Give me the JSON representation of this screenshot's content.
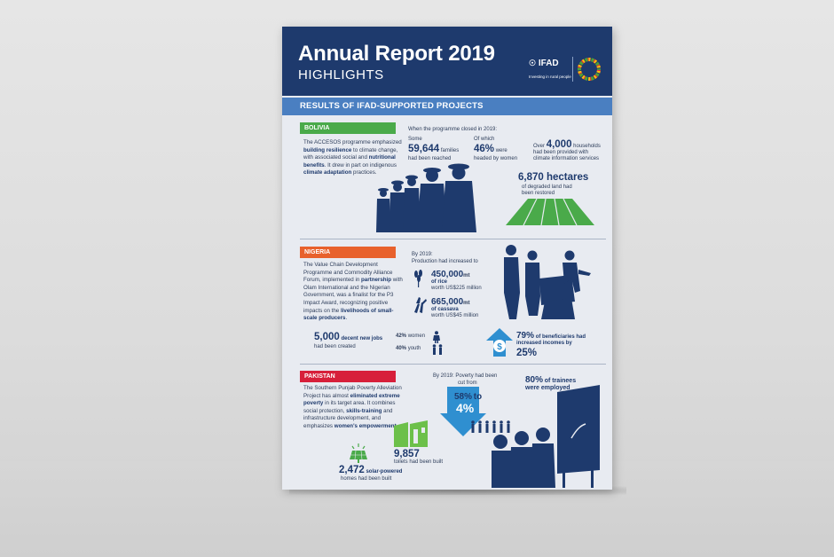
{
  "header": {
    "title": "Annual Report 2019",
    "subtitle": "HIGHLIGHTS",
    "org": "IFAD",
    "org_tagline": "Investing in rural people"
  },
  "results_heading": "RESULTS OF IFAD-SUPPORTED PROJECTS",
  "bolivia": {
    "label": "BOLIVIA",
    "label_color": "#4aaa4a",
    "desc_parts": [
      "The ACCESOS programme emphasized ",
      "building resilience",
      " to climate change, with associated social and ",
      "nutritional benefits",
      ". It drew in part on indigenous ",
      "climate adaptation",
      " practices."
    ],
    "intro": "When the programme closed in 2019:",
    "families_pre": "Some",
    "families_value": "59,644",
    "families_unit": "families",
    "families_post": "had been reached",
    "women_pre": "Of which",
    "women_value": "46%",
    "women_unit": "were",
    "women_post": "headed by women",
    "households_pre": "Over",
    "households_value": "4,000",
    "households_unit": "households",
    "households_post1": "had been provided with",
    "households_post2": "climate information services",
    "hectares_value": "6,870 hectares",
    "hectares_post1": "of degraded land had",
    "hectares_post2": "been restored"
  },
  "nigeria": {
    "label": "NIGERIA",
    "label_color": "#e8612c",
    "desc_parts": [
      "The Value Chain Development Programme and Commodity Alliance Forum, implemented in ",
      "partnership",
      " with Olam International and the Nigerian Government, was a finalist for the P3 Impact Award, recognizing positive impacts on the ",
      "livelihoods of small-scale producers",
      "."
    ],
    "intro1": "By 2019:",
    "intro2": "Production had increased to",
    "rice_value": "450,000",
    "rice_unit": "mt",
    "rice_label": "of rice",
    "rice_worth": "worth US$225 million",
    "cassava_value": "665,000",
    "cassava_unit": "mt",
    "cassava_label": "of cassava",
    "cassava_worth": "worth US$45 million",
    "jobs_value": "5,000",
    "jobs_unit": "decent new jobs",
    "jobs_post": "had been created",
    "women_pct": "42%",
    "women_label": "women",
    "youth_pct": "40%",
    "youth_label": "youth",
    "income_pct": "79%",
    "income_text1": "of beneficiaries had",
    "income_text2": "increased incomes by",
    "income_value": "25%"
  },
  "pakistan": {
    "label": "PAKISTAN",
    "label_color": "#d71f3a",
    "desc_parts": [
      "The Southern Punjab Poverty Alleviation Project has almost ",
      "eliminated extreme poverty",
      " in its target area. It combines social protection, ",
      "skills-training",
      " and infrastructure development, and emphasizes ",
      "women's empowerment",
      "."
    ],
    "poverty_line1": "By 2019: Poverty had been",
    "poverty_line2": "cut from",
    "poverty_from": "58%",
    "poverty_to_word": "to",
    "poverty_to": "4%",
    "trainees_value": "80%",
    "trainees_unit": "of trainees",
    "trainees_post": "were employed",
    "toilets_value": "9,857",
    "toilets_post": "toilets had been built",
    "solar_value": "2,472",
    "solar_unit": "solar-powered",
    "solar_post": "homes had been built"
  },
  "colors": {
    "navy": "#1e3a6d",
    "bar_blue": "#4a7fc1",
    "green": "#4aaa4a",
    "arrow_blue": "#2f8fd0"
  }
}
